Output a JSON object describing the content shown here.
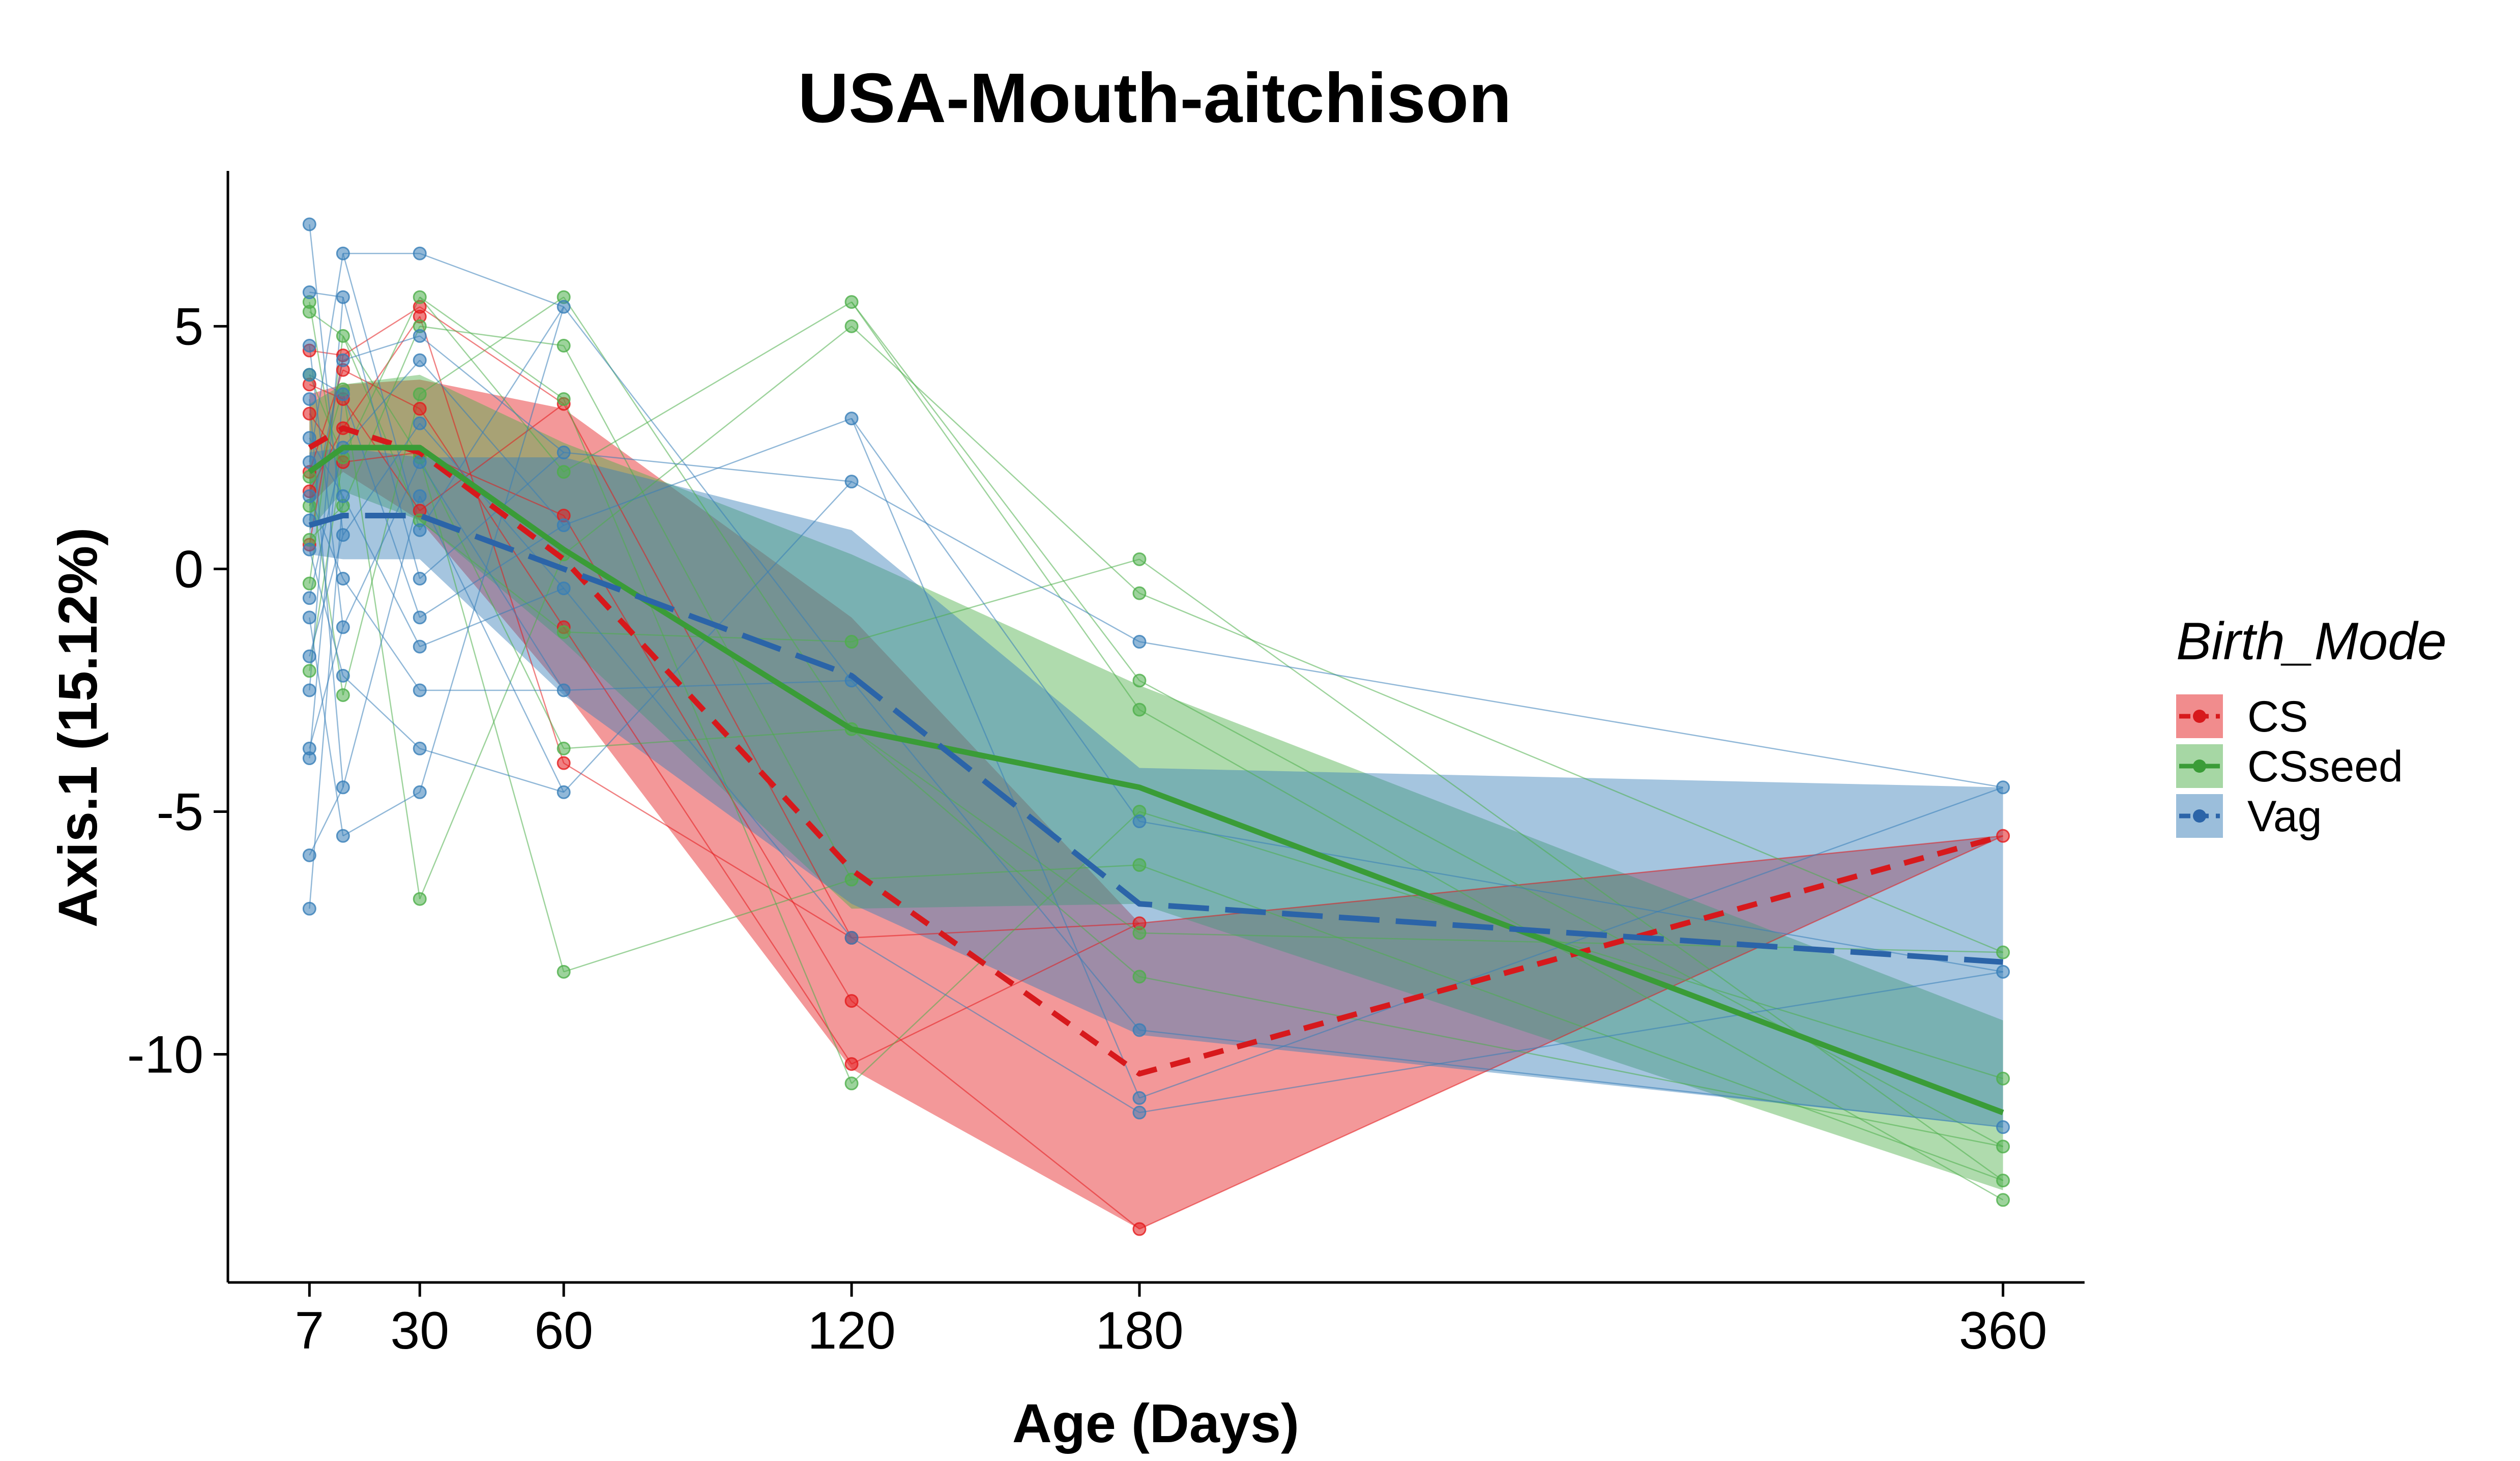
{
  "chart_data": {
    "type": "line",
    "title": "USA-Mouth-aitchison",
    "xlabel": "Age (Days)",
    "ylabel": "Axis.1 (15.12%)",
    "x_ticks": [
      7,
      30,
      60,
      120,
      180,
      360
    ],
    "x_tick_labels": [
      "7",
      "30",
      "60",
      "120",
      "180",
      "360"
    ],
    "y_ticks": [
      5,
      0,
      -5,
      -10
    ],
    "y_tick_labels": [
      "5",
      "0",
      "-5",
      "-10"
    ],
    "xlim": [
      -10,
      377
    ],
    "ylim": [
      -14.7,
      8.2
    ],
    "grid": false,
    "legend": {
      "title": "Birth_Mode",
      "position": "right"
    },
    "series": [
      {
        "name": "CS",
        "color": "#E41A1C",
        "line_color": "#D7191C",
        "dash": "dashed",
        "x": [
          7,
          14,
          30,
          60,
          120,
          180,
          360
        ],
        "mean": [
          2.5,
          2.9,
          2.4,
          0.2,
          -6.2,
          -10.4,
          -5.5
        ],
        "ribbon_upper": [
          3.6,
          3.8,
          3.9,
          3.3,
          -1.0,
          -7.3,
          -5.5
        ],
        "ribbon_lower": [
          1.3,
          2.0,
          1.0,
          -2.5,
          -10.3,
          -13.6,
          -5.5
        ],
        "points": [
          [
            7,
            4.5
          ],
          [
            7,
            3.8
          ],
          [
            7,
            3.2
          ],
          [
            7,
            2.0
          ],
          [
            7,
            1.6
          ],
          [
            7,
            0.5
          ],
          [
            14,
            4.4
          ],
          [
            14,
            4.1
          ],
          [
            14,
            3.5
          ],
          [
            14,
            2.9
          ],
          [
            14,
            2.2
          ],
          [
            30,
            5.4
          ],
          [
            30,
            5.2
          ],
          [
            30,
            3.3
          ],
          [
            30,
            2.4
          ],
          [
            30,
            1.2
          ],
          [
            60,
            3.4
          ],
          [
            60,
            1.1
          ],
          [
            60,
            -1.2
          ],
          [
            60,
            -4.0
          ],
          [
            120,
            -7.6
          ],
          [
            120,
            -8.9
          ],
          [
            120,
            -10.2
          ],
          [
            180,
            -7.3
          ],
          [
            180,
            -13.6
          ],
          [
            360,
            -5.5
          ]
        ]
      },
      {
        "name": "CSseed",
        "color": "#4DAF4A",
        "line_color": "#3A9C37",
        "dash": "solid",
        "x": [
          7,
          14,
          30,
          60,
          120,
          180,
          360
        ],
        "mean": [
          2.0,
          2.5,
          2.5,
          0.4,
          -3.3,
          -4.5,
          -11.2
        ],
        "ribbon_upper": [
          3.4,
          3.8,
          4.0,
          2.6,
          0.3,
          -2.4,
          -9.3
        ],
        "ribbon_lower": [
          0.8,
          1.6,
          1.0,
          -1.5,
          -7.0,
          -6.9,
          -12.8
        ],
        "points": [
          [
            7,
            5.5
          ],
          [
            7,
            5.3
          ],
          [
            7,
            4.0
          ],
          [
            7,
            1.9
          ],
          [
            7,
            1.3
          ],
          [
            7,
            0.6
          ],
          [
            7,
            -0.3
          ],
          [
            7,
            -2.1
          ],
          [
            14,
            4.8
          ],
          [
            14,
            3.7
          ],
          [
            14,
            2.3
          ],
          [
            14,
            1.3
          ],
          [
            14,
            -2.6
          ],
          [
            30,
            5.6
          ],
          [
            30,
            5.0
          ],
          [
            30,
            3.6
          ],
          [
            30,
            2.3
          ],
          [
            30,
            1.0
          ],
          [
            30,
            -6.8
          ],
          [
            60,
            5.6
          ],
          [
            60,
            4.6
          ],
          [
            60,
            3.5
          ],
          [
            60,
            2.0
          ],
          [
            60,
            0.3
          ],
          [
            60,
            -1.3
          ],
          [
            60,
            -3.7
          ],
          [
            60,
            -8.3
          ],
          [
            120,
            5.5
          ],
          [
            120,
            5.0
          ],
          [
            120,
            -1.5
          ],
          [
            120,
            -3.3
          ],
          [
            120,
            -6.4
          ],
          [
            120,
            -10.6
          ],
          [
            180,
            0.2
          ],
          [
            180,
            -0.5
          ],
          [
            180,
            -2.3
          ],
          [
            180,
            -2.9
          ],
          [
            180,
            -5.0
          ],
          [
            180,
            -6.1
          ],
          [
            180,
            -7.5
          ],
          [
            180,
            -8.4
          ],
          [
            360,
            -7.9
          ],
          [
            360,
            -10.5
          ],
          [
            360,
            -11.9
          ],
          [
            360,
            -12.6
          ],
          [
            360,
            -13.0
          ]
        ]
      },
      {
        "name": "Vag",
        "color": "#377EB8",
        "line_color": "#2B64A8",
        "dash": "longdash",
        "x": [
          7,
          14,
          30,
          60,
          120,
          180,
          360
        ],
        "mean": [
          0.9,
          1.1,
          1.1,
          0.0,
          -2.2,
          -6.9,
          -8.1
        ],
        "ribbon_upper": [
          2.4,
          2.5,
          2.3,
          2.3,
          0.8,
          -4.1,
          -4.5
        ],
        "ribbon_lower": [
          0.3,
          0.2,
          0.2,
          -2.6,
          -6.9,
          -9.6,
          -11.5
        ],
        "points": [
          [
            7,
            7.1
          ],
          [
            7,
            5.7
          ],
          [
            7,
            4.6
          ],
          [
            7,
            4.0
          ],
          [
            7,
            3.5
          ],
          [
            7,
            2.7
          ],
          [
            7,
            2.2
          ],
          [
            7,
            1.5
          ],
          [
            7,
            1.0
          ],
          [
            7,
            0.4
          ],
          [
            7,
            -0.6
          ],
          [
            7,
            -1.0
          ],
          [
            7,
            -1.8
          ],
          [
            7,
            -2.5
          ],
          [
            7,
            -3.7
          ],
          [
            7,
            -3.9
          ],
          [
            7,
            -5.9
          ],
          [
            7,
            -7.0
          ],
          [
            14,
            6.5
          ],
          [
            14,
            5.6
          ],
          [
            14,
            4.3
          ],
          [
            14,
            3.6
          ],
          [
            14,
            2.5
          ],
          [
            14,
            1.5
          ],
          [
            14,
            0.7
          ],
          [
            14,
            -0.2
          ],
          [
            14,
            -1.2
          ],
          [
            14,
            -2.2
          ],
          [
            14,
            -4.5
          ],
          [
            14,
            -5.5
          ],
          [
            30,
            6.5
          ],
          [
            30,
            4.8
          ],
          [
            30,
            4.3
          ],
          [
            30,
            3.0
          ],
          [
            30,
            2.2
          ],
          [
            30,
            1.5
          ],
          [
            30,
            0.8
          ],
          [
            30,
            -0.2
          ],
          [
            30,
            -1.0
          ],
          [
            30,
            -1.6
          ],
          [
            30,
            -2.5
          ],
          [
            30,
            -3.7
          ],
          [
            30,
            -4.6
          ],
          [
            60,
            5.4
          ],
          [
            60,
            2.4
          ],
          [
            60,
            0.9
          ],
          [
            60,
            -0.4
          ],
          [
            60,
            -2.5
          ],
          [
            60,
            -4.6
          ],
          [
            120,
            3.1
          ],
          [
            120,
            1.8
          ],
          [
            120,
            -2.3
          ],
          [
            120,
            -7.6
          ],
          [
            180,
            -1.5
          ],
          [
            180,
            -5.2
          ],
          [
            180,
            -9.5
          ],
          [
            180,
            -10.9
          ],
          [
            180,
            -11.2
          ],
          [
            360,
            -4.5
          ],
          [
            360,
            -8.3
          ],
          [
            360,
            -11.5
          ]
        ]
      }
    ]
  }
}
